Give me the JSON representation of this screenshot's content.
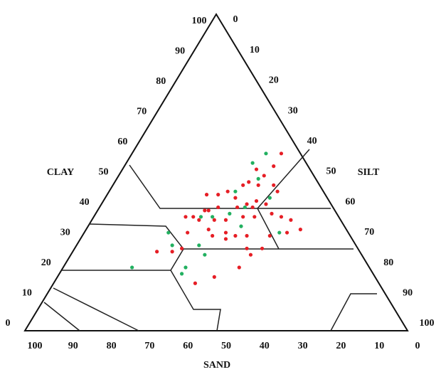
{
  "chart_data": {
    "type": "ternary",
    "axes": {
      "clay": "CLAY",
      "silt": "SILT",
      "sand": "SAND"
    },
    "clay_lim": [
      0,
      100
    ],
    "silt_lim": [
      0,
      100
    ],
    "sand_lim": [
      0,
      100
    ],
    "clay_ticks": [
      0,
      10,
      20,
      30,
      40,
      50,
      60,
      70,
      80,
      90,
      100
    ],
    "silt_ticks": [
      0,
      10,
      20,
      30,
      40,
      50,
      60,
      70,
      80,
      90,
      100
    ],
    "sand_ticks": [
      0,
      10,
      20,
      30,
      40,
      50,
      60,
      70,
      80,
      90,
      100
    ],
    "series": [
      {
        "color": "#e61e25",
        "clay": [
          56,
          52,
          51,
          49,
          47,
          46,
          46,
          44,
          46,
          44,
          43,
          43,
          42,
          40,
          41,
          40,
          39,
          39,
          39,
          38,
          38,
          36,
          36,
          35,
          35,
          35,
          36,
          36,
          37,
          36,
          35,
          31,
          30,
          30,
          30,
          32,
          31,
          31,
          30,
          32,
          25,
          25,
          26,
          26,
          20,
          17,
          15,
          24,
          26,
          29
        ],
        "sand": [
          5,
          9,
          14,
          13,
          18,
          16,
          12,
          12,
          20,
          25,
          28,
          31,
          24,
          22,
          19,
          17,
          21,
          25,
          30,
          33,
          34,
          38,
          40,
          37,
          33,
          30,
          25,
          22,
          17,
          15,
          13,
          32,
          30,
          27,
          36,
          36,
          42,
          16,
          21,
          12,
          49,
          53,
          46,
          25,
          34,
          42,
          48,
          29,
          29,
          33
        ]
      },
      {
        "color": "#22b060",
        "clay": [
          56,
          53,
          48,
          39,
          37,
          36,
          36,
          31,
          27,
          24,
          27,
          20,
          18,
          20,
          31,
          42,
          33,
          44
        ],
        "sand": [
          9,
          14,
          15,
          23,
          28,
          33,
          36,
          47,
          48,
          41,
          41,
          48,
          50,
          62,
          18,
          15,
          27,
          23
        ]
      }
    ]
  }
}
